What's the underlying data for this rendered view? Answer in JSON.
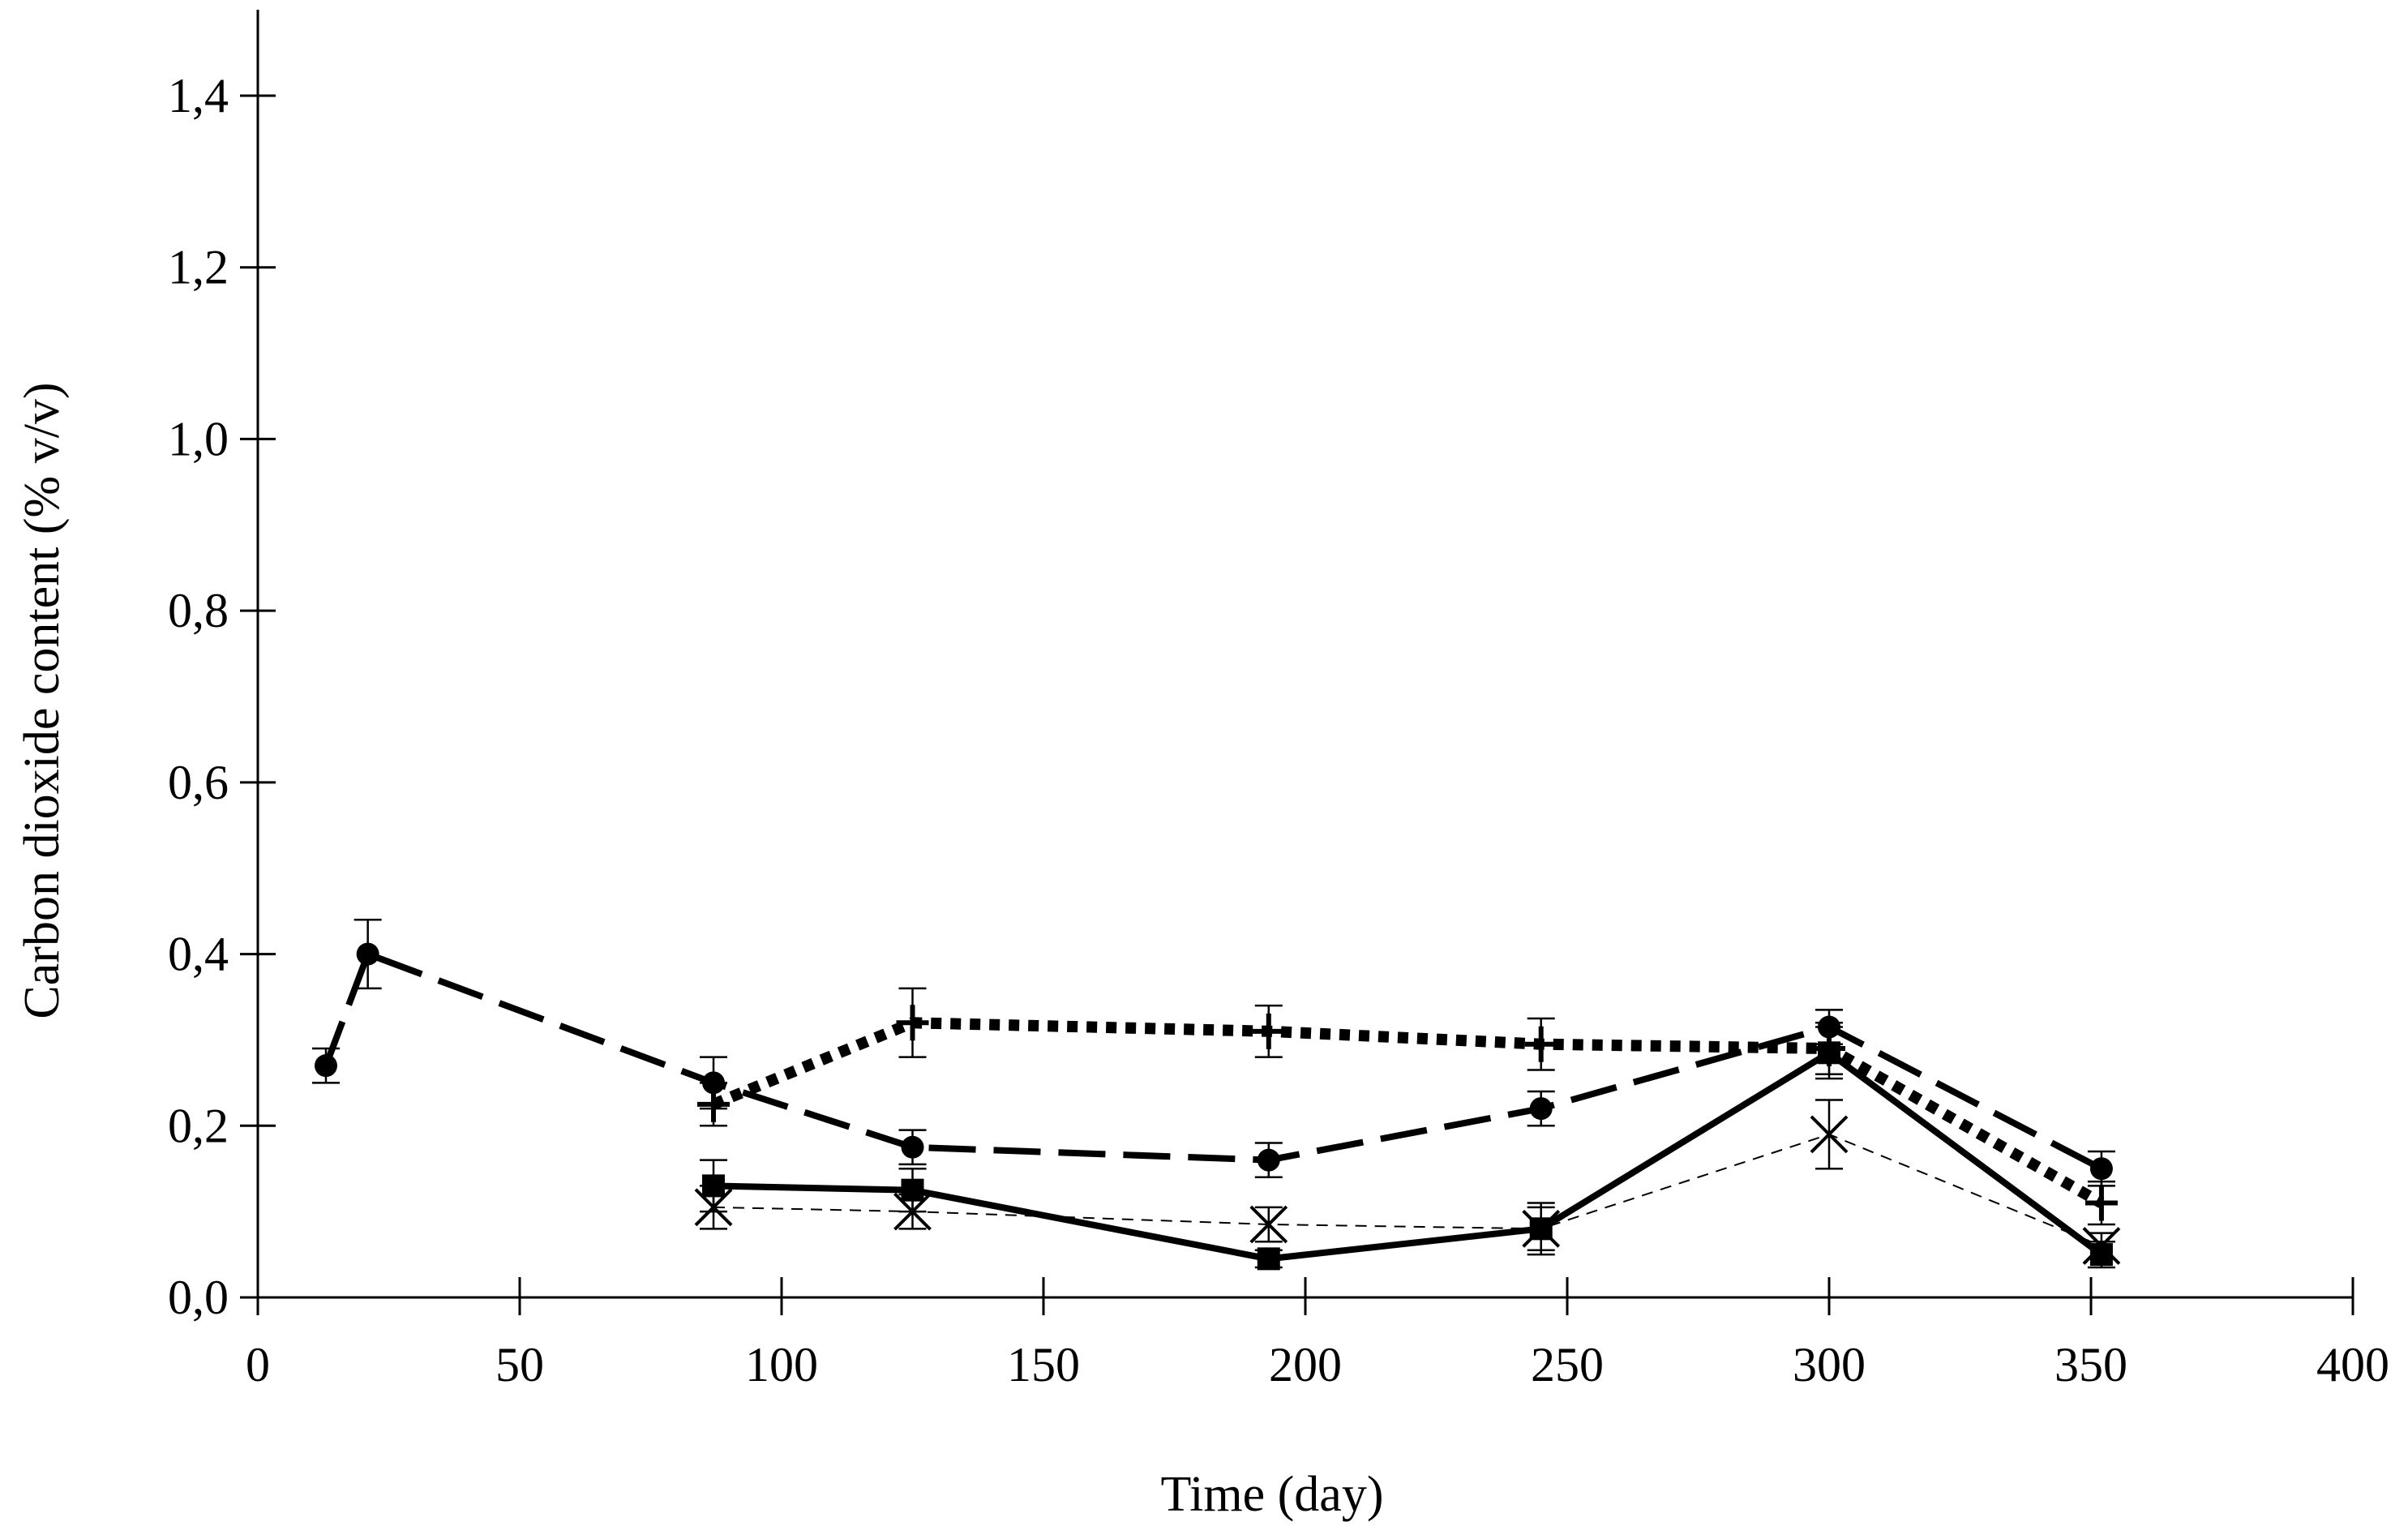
{
  "chart_data": {
    "type": "line",
    "title": "",
    "xlabel": "Time (day)",
    "ylabel": "Carbon dioxide content (% v/v)",
    "xlim": [
      0,
      400
    ],
    "ylim": [
      0,
      1.5
    ],
    "x_ticks": [
      0,
      50,
      100,
      150,
      200,
      250,
      300,
      350,
      400
    ],
    "x_tick_labels": [
      "0",
      "50",
      "100",
      "150",
      "200",
      "250",
      "300",
      "350",
      "400"
    ],
    "y_ticks": [
      0,
      0.2,
      0.4,
      0.6,
      0.8,
      1.0,
      1.2,
      1.4
    ],
    "y_tick_labels": [
      "0,0",
      "0,2",
      "0,4",
      "0,6",
      "0,8",
      "1,0",
      "1,2",
      "1,4"
    ],
    "grid": false,
    "legend": null,
    "series": [
      {
        "name": "circle-dashed",
        "marker": "circle",
        "line_style": "long-dash",
        "x": [
          13,
          21,
          87,
          125,
          193,
          245,
          300,
          352
        ],
        "y": [
          0.27,
          0.4,
          0.25,
          0.175,
          0.16,
          0.22,
          0.315,
          0.15
        ],
        "error": [
          0.02,
          0.04,
          0.03,
          0.02,
          0.02,
          0.02,
          0.02,
          0.02
        ]
      },
      {
        "name": "plus-dotted",
        "marker": "plus",
        "line_style": "dotted",
        "x": [
          87,
          125,
          193,
          245,
          300,
          352
        ],
        "y": [
          0.225,
          0.32,
          0.31,
          0.295,
          0.29,
          0.11
        ],
        "error": [
          0.025,
          0.04,
          0.03,
          0.03,
          0.03,
          0.025
        ]
      },
      {
        "name": "square-solid",
        "marker": "square",
        "line_style": "solid",
        "x": [
          87,
          125,
          193,
          245,
          300,
          352
        ],
        "y": [
          0.13,
          0.125,
          0.045,
          0.08,
          0.285,
          0.05
        ],
        "error": [
          0.03,
          0.025,
          0.01,
          0.03,
          0.03,
          0.015
        ]
      },
      {
        "name": "asterisk-thin-dashed",
        "marker": "asterisk",
        "line_style": "thin-dash",
        "x": [
          87,
          125,
          193,
          245,
          300,
          352
        ],
        "y": [
          0.105,
          0.1,
          0.085,
          0.08,
          0.19,
          0.06
        ],
        "error": [
          0.025,
          0.02,
          0.02,
          0.025,
          0.04,
          0.015
        ]
      }
    ]
  }
}
